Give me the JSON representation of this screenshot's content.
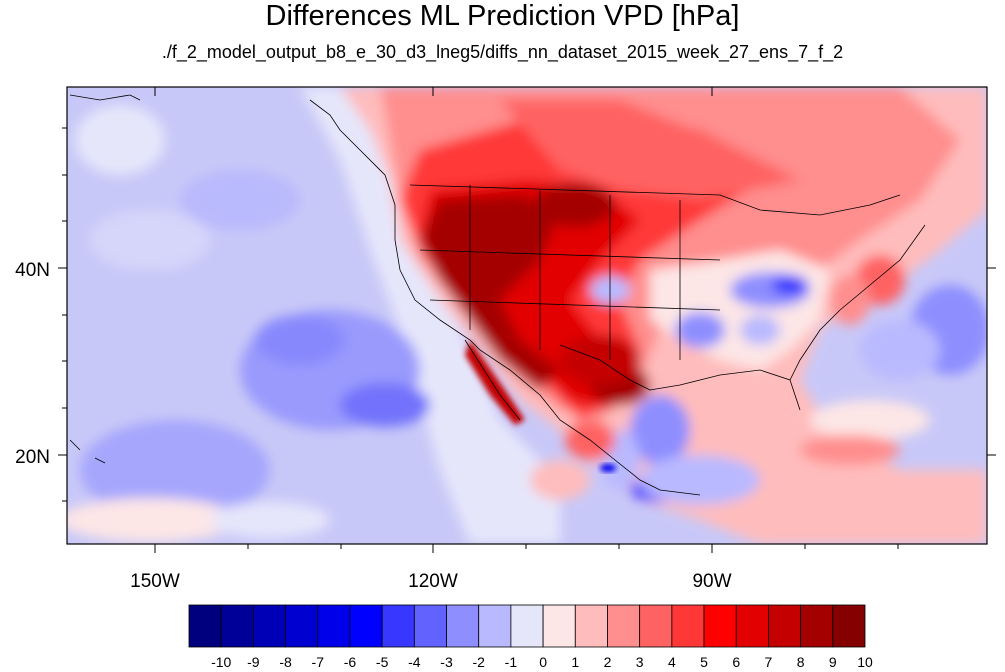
{
  "title": "Differences ML Prediction VPD [hPa]",
  "subtitle": "./f_2_model_output_b8_e_30_d3_lneg5/diffs_nn_dataset_2015_week_27_ens_7_f_2",
  "lat_labels": [
    "40N",
    "20N"
  ],
  "lon_labels": [
    "150W",
    "120W",
    "90W"
  ],
  "colorbar": {
    "labels": [
      "-10",
      "-9",
      "-8",
      "-7",
      "-6",
      "-5",
      "-4",
      "-3",
      "-2",
      "-1",
      "0",
      "1",
      "2",
      "3",
      "4",
      "5",
      "6",
      "7",
      "8",
      "9",
      "10"
    ],
    "colors": [
      "#00007e",
      "#000099",
      "#0000b6",
      "#0000d0",
      "#0000ea",
      "#0000ff",
      "#3737ff",
      "#6262ff",
      "#8e8eff",
      "#b9b9ff",
      "#e6e6fb",
      "#fde6e6",
      "#ffbcbc",
      "#ff8e8e",
      "#ff6262",
      "#ff3737",
      "#ff0000",
      "#e20000",
      "#c50000",
      "#a50000",
      "#850000"
    ]
  }
}
